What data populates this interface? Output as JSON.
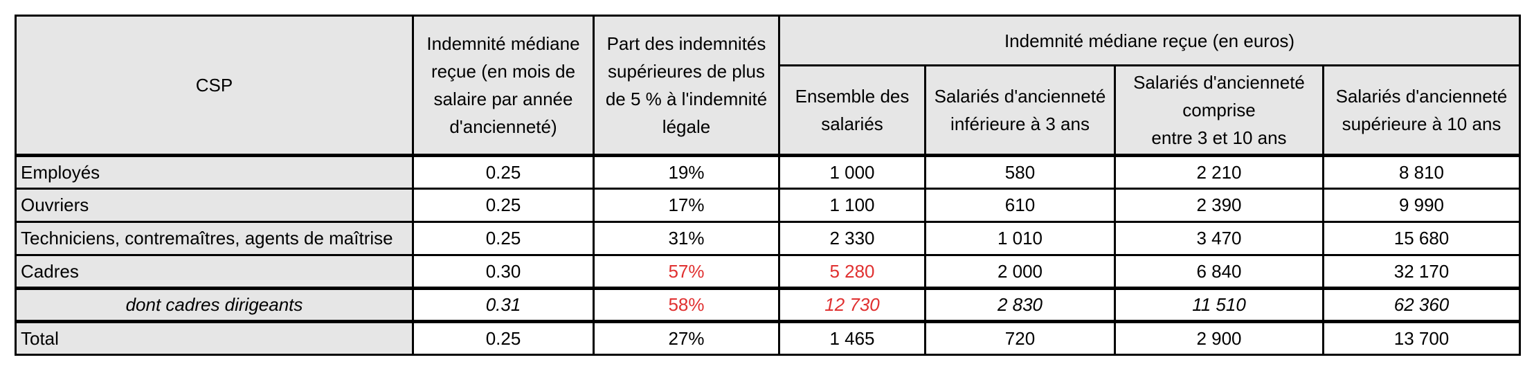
{
  "headers": {
    "csp": "CSP",
    "indemnite_mois": "Indemnité médiane reçue (en mois de salaire par année d'ancienneté)",
    "part_sup": "Part des indemnités supérieures de plus de 5 % à l'indemnité légale",
    "group_euros": "Indemnité médiane reçue (en euros)",
    "ensemble": "Ensemble des salariés",
    "inf3": "Salariés d'ancienneté inférieure à 3 ans",
    "entre3_10_a": "Salariés d'ancienneté comprise",
    "entre3_10_b": "entre 3 et 10 ans",
    "sup10": "Salariés d'ancienneté supérieure à 10 ans"
  },
  "rows": [
    {
      "csp": "Employés",
      "mois": "0.25",
      "part": "19%",
      "ensemble": "1 000",
      "inf3": "580",
      "entre": "2 210",
      "sup10": "8 810"
    },
    {
      "csp": "Ouvriers",
      "mois": "0.25",
      "part": "17%",
      "ensemble": "1 100",
      "inf3": "610",
      "entre": "2 390",
      "sup10": "9 990"
    },
    {
      "csp": "Techniciens, contremaîtres, agents de maîtrise",
      "mois": "0.25",
      "part": "31%",
      "ensemble": "2 330",
      "inf3": "1 010",
      "entre": "3 470",
      "sup10": "15 680"
    },
    {
      "csp": "Cadres",
      "mois": "0.30",
      "part": "57%",
      "ensemble": "5 280",
      "inf3": "2 000",
      "entre": "6 840",
      "sup10": "32 170"
    },
    {
      "csp": "dont cadres dirigeants",
      "mois": "0.31",
      "part": "58%",
      "ensemble": "12 730",
      "inf3": "2 830",
      "entre": "11 510",
      "sup10": "62 360"
    },
    {
      "csp": "Total",
      "mois": "0.25",
      "part": "27%",
      "ensemble": "1 465",
      "inf3": "720",
      "entre": "2 900",
      "sup10": "13 700"
    }
  ],
  "colors": {
    "highlight": "#e03030",
    "header_bg": "#e6e6e6"
  }
}
